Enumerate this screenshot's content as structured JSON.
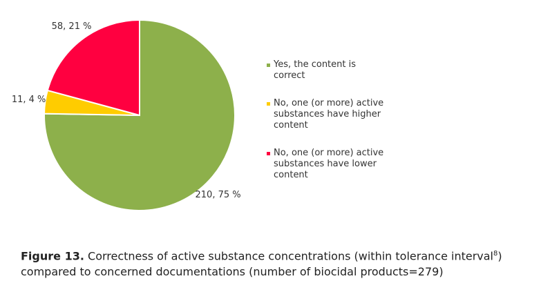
{
  "chart_data": {
    "type": "pie",
    "series": [
      {
        "name": "Yes, the content is correct",
        "color": "#8db04b",
        "values": [
          210
        ],
        "value_labels": [
          "210, 75 %"
        ]
      },
      {
        "name": "No, one (or more) active substances have higher content",
        "color": "#ffcc00",
        "values": [
          11
        ],
        "value_labels": [
          "11, 4 %"
        ]
      },
      {
        "name": "No, one (or more) active substances have lower content",
        "color": "#ff0040",
        "values": [
          58
        ],
        "value_labels": [
          "58, 21 %"
        ]
      }
    ]
  },
  "caption": {
    "label": "Figure 13.",
    "text": "Correctness of active substance concentrations (within tolerance interval",
    "footnote": "8",
    "text_end": ") compared to concerned documentations (number of biocidal products=279)"
  }
}
